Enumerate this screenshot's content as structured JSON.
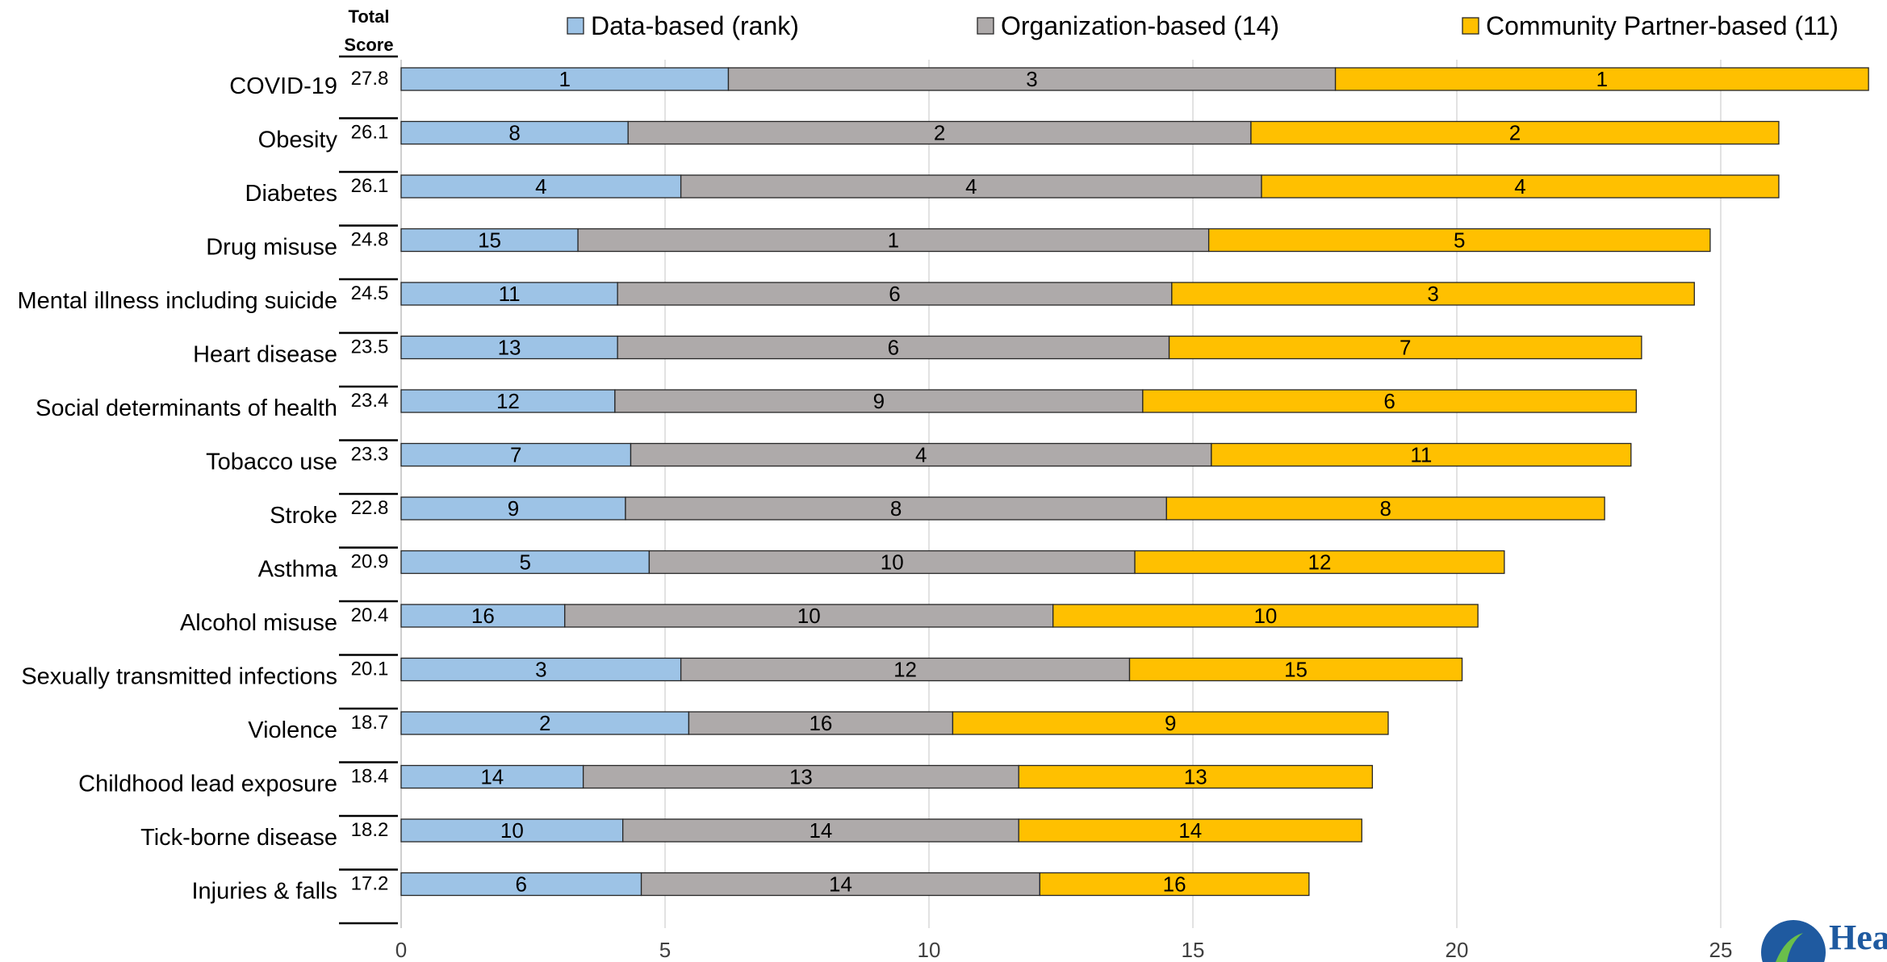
{
  "chart_data": {
    "type": "bar",
    "orientation": "horizontal",
    "stacked": true,
    "total_header": [
      "Total",
      "Score"
    ],
    "categories": [
      "COVID-19",
      "Obesity",
      "Diabetes",
      "Drug misuse",
      "Mental illness including suicide",
      "Heart disease",
      "Social determinants of health",
      "Tobacco use",
      "Stroke",
      "Asthma",
      "Alcohol misuse",
      "Sexually transmitted infections",
      "Violence",
      "Childhood lead exposure",
      "Tick-borne disease",
      "Injuries & falls"
    ],
    "totals": [
      "27.8",
      "26.1",
      "26.1",
      "24.8",
      "24.5",
      "23.5",
      "23.4",
      "23.3",
      "22.8",
      "20.9",
      "20.4",
      "20.1",
      "18.7",
      "18.4",
      "18.2",
      "17.2"
    ],
    "series": [
      {
        "name": "Data-based (rank)",
        "color": "#9dc3e6",
        "values": [
          6.2,
          4.3,
          5.3,
          3.35,
          4.1,
          4.1,
          4.05,
          4.35,
          4.25,
          4.7,
          3.1,
          5.3,
          5.45,
          3.45,
          4.2,
          4.55
        ],
        "labels": [
          "1",
          "8",
          "4",
          "15",
          "11",
          "13",
          "12",
          "7",
          "9",
          "5",
          "16",
          "3",
          "2",
          "14",
          "10",
          "6"
        ]
      },
      {
        "name": "Organization-based (14)",
        "color": "#aeaaaa",
        "values": [
          11.5,
          11.8,
          11.0,
          11.95,
          10.5,
          10.45,
          10.0,
          11.0,
          10.25,
          9.2,
          9.25,
          8.5,
          5.0,
          8.25,
          7.5,
          7.55
        ],
        "labels": [
          "3",
          "2",
          "4",
          "1",
          "6",
          "6",
          "9",
          "4",
          "8",
          "10",
          "10",
          "12",
          "16",
          "13",
          "14",
          "14"
        ]
      },
      {
        "name": "Community Partner-based (11)",
        "color": "#ffc000",
        "values": [
          10.1,
          10.0,
          9.8,
          9.5,
          9.9,
          8.95,
          9.35,
          7.95,
          8.3,
          7.0,
          8.05,
          6.3,
          8.25,
          6.7,
          6.5,
          5.1
        ],
        "labels": [
          "1",
          "2",
          "4",
          "5",
          "3",
          "7",
          "6",
          "11",
          "8",
          "12",
          "10",
          "15",
          "9",
          "13",
          "14",
          "16"
        ]
      }
    ],
    "xlim": [
      0,
      30
    ],
    "xticks": [
      "0",
      "5",
      "10",
      "15",
      "20",
      "25"
    ],
    "grid": "vertical",
    "legend": "top",
    "xlabel": "",
    "ylabel": ""
  },
  "logo": {
    "text": "Hea"
  }
}
